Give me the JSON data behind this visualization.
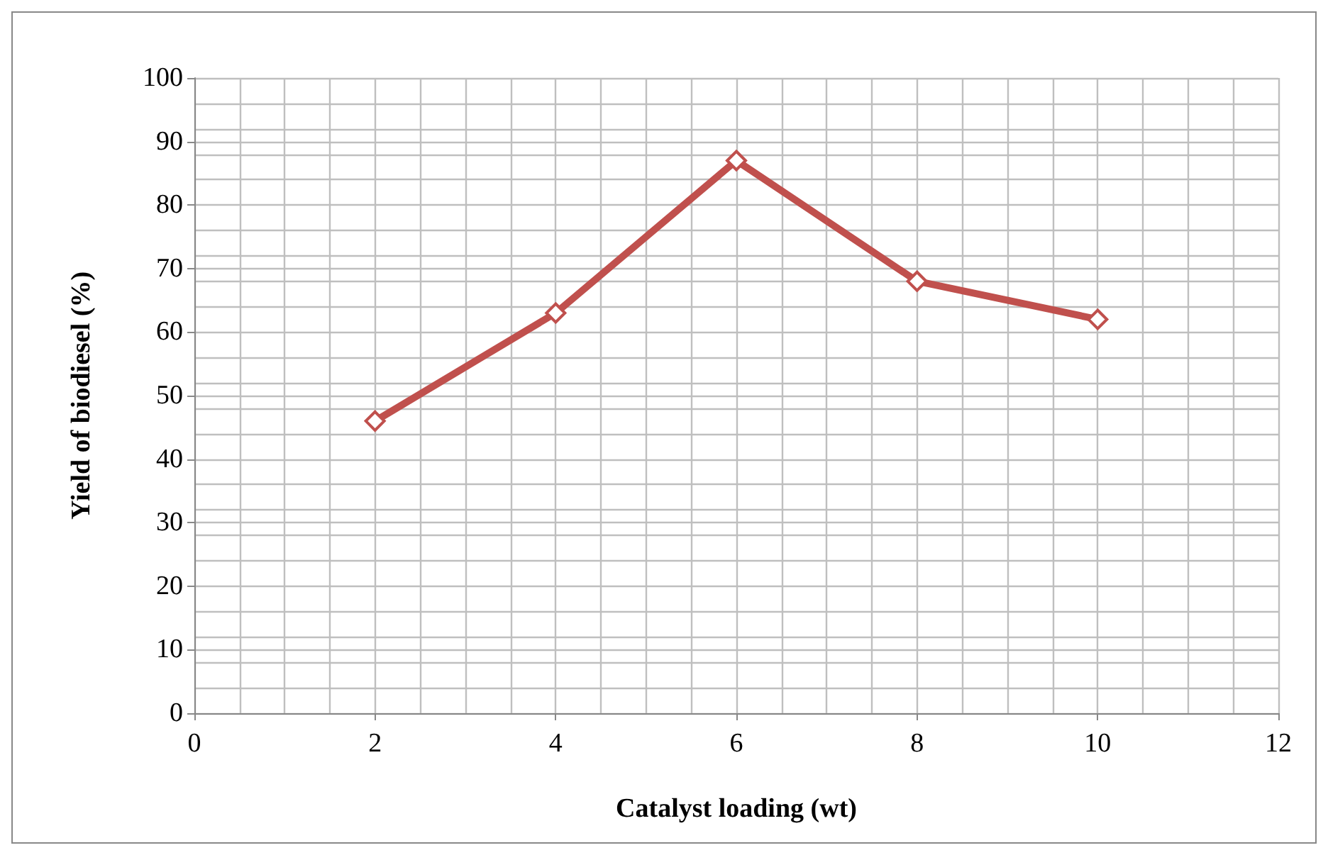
{
  "chart_data": {
    "type": "line",
    "xlabel": "Catalyst loading (wt)",
    "ylabel": "Yield of biodiesel (%)",
    "x": [
      2,
      4,
      6,
      8,
      10
    ],
    "series": [
      {
        "color": "#c0504d",
        "values": [
          46,
          63,
          87,
          68,
          62
        ]
      }
    ],
    "xlim": [
      0,
      12
    ],
    "xticks": [
      0,
      2,
      4,
      6,
      8,
      10,
      12
    ],
    "ylim": [
      0,
      100
    ],
    "yticks": [
      0,
      10,
      20,
      30,
      40,
      50,
      60,
      70,
      80,
      90,
      100
    ],
    "grid": true,
    "marker": "diamond",
    "line_style": "solid"
  }
}
